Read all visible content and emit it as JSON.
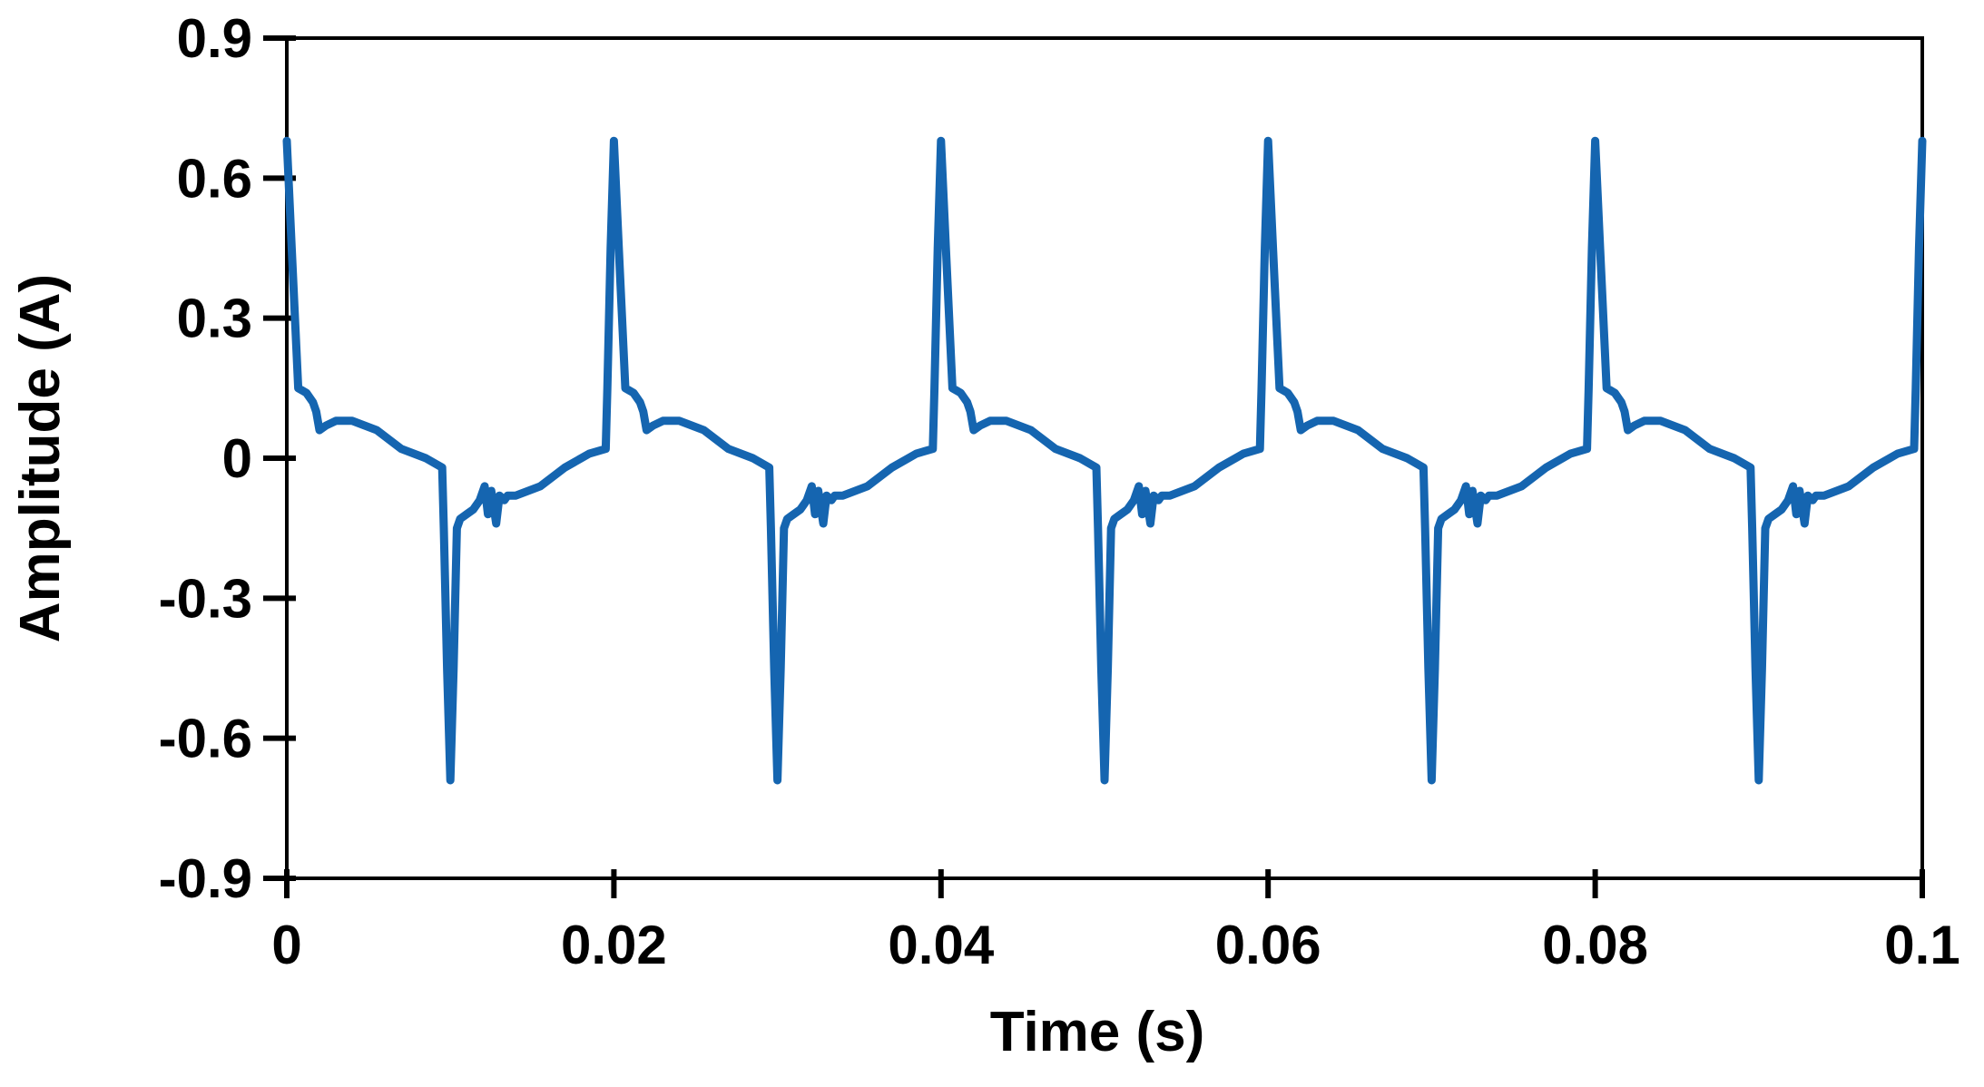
{
  "chart_data": {
    "type": "line",
    "title": "",
    "xlabel": "Time (s)",
    "ylabel": "Amplitude (A)",
    "xlim": [
      0,
      0.1
    ],
    "ylim": [
      -0.9,
      0.9
    ],
    "grid": false,
    "legend": "none",
    "x_ticks": [
      0,
      0.02,
      0.04,
      0.06,
      0.08,
      0.1
    ],
    "x_tick_labels": [
      "0",
      "0.02",
      "0.04",
      "0.06",
      "0.08",
      "0.1"
    ],
    "y_ticks": [
      0.9,
      0.6,
      0.3,
      0,
      -0.3,
      -0.6,
      -0.9
    ],
    "y_tick_labels": [
      "0.9",
      "0.6",
      "0.3",
      "0",
      "-0.3",
      "-0.6",
      "-0.9"
    ],
    "line_color": "#1565b0",
    "period": 0.02,
    "cycles": 5,
    "series": [
      {
        "name": "",
        "one_period": {
          "x": [
            0,
            0.0003,
            0.0007,
            0.0012,
            0.0016,
            0.0018,
            0.002,
            0.0024,
            0.003,
            0.004,
            0.0055,
            0.007,
            0.0085,
            0.0095,
            0.0096,
            0.0098,
            0.01,
            0.0102,
            0.0104,
            0.0106,
            0.011,
            0.0114,
            0.0118,
            0.0121,
            0.0123,
            0.0125,
            0.0128,
            0.013,
            0.0133,
            0.0135,
            0.014,
            0.0155,
            0.017,
            0.0185,
            0.0195,
            0.0196,
            0.0198,
            0.02
          ],
          "y": [
            0.68,
            0.45,
            0.15,
            0.14,
            0.12,
            0.1,
            0.06,
            0.07,
            0.08,
            0.08,
            0.06,
            0.02,
            0.0,
            -0.02,
            -0.15,
            -0.45,
            -0.69,
            -0.45,
            -0.15,
            -0.13,
            -0.12,
            -0.11,
            -0.09,
            -0.06,
            -0.12,
            -0.07,
            -0.14,
            -0.08,
            -0.09,
            -0.08,
            -0.08,
            -0.06,
            -0.02,
            0.01,
            0.02,
            0.15,
            0.45,
            0.68
          ]
        }
      }
    ]
  }
}
